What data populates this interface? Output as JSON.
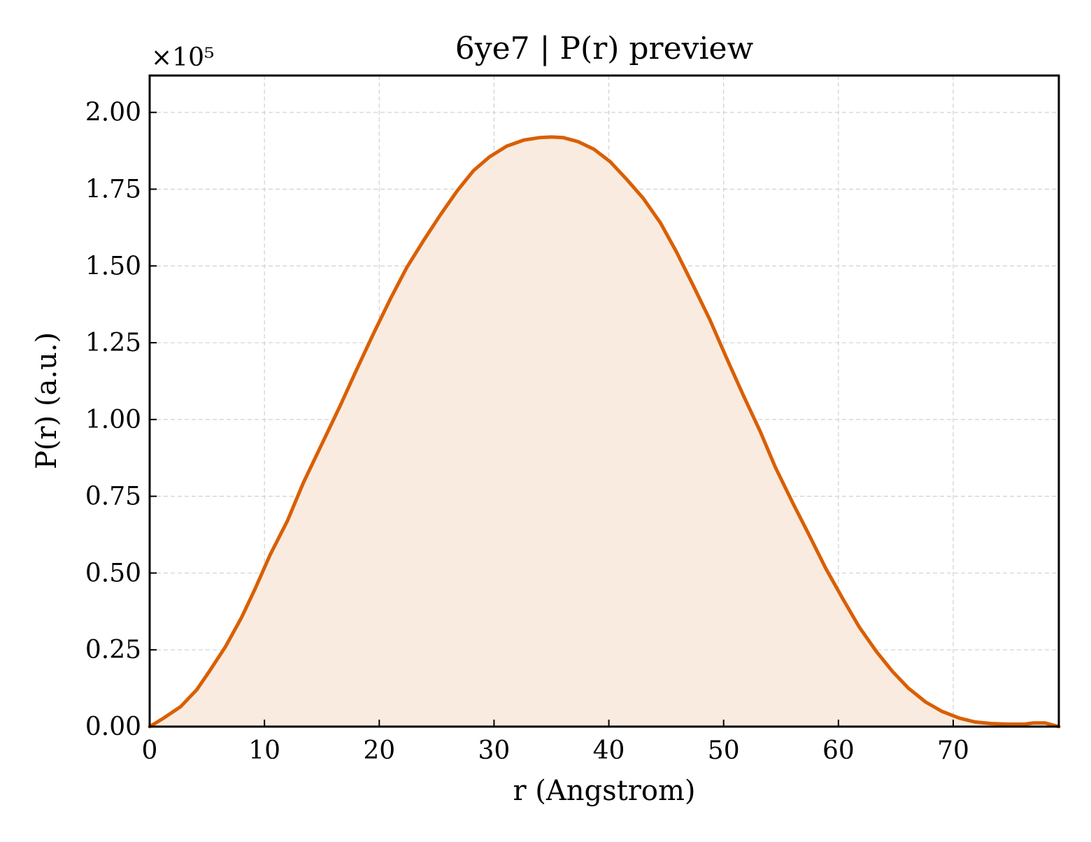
{
  "chart_data": {
    "type": "area",
    "title": "6ye7 | P(r) preview",
    "xlabel": "r (Angstrom)",
    "ylabel": "P(r) (a.u.)",
    "y_offset_label": "×10⁵",
    "y_scale_factor": 100000,
    "xlim": [
      0,
      79.2
    ],
    "ylim": [
      0,
      2.12
    ],
    "grid": true,
    "x_ticks": [
      0,
      10,
      20,
      30,
      40,
      50,
      60,
      70
    ],
    "x_tick_labels": [
      "0",
      "10",
      "20",
      "30",
      "40",
      "50",
      "60",
      "70"
    ],
    "y_ticks": [
      0,
      0.25,
      0.5,
      0.75,
      1.0,
      1.25,
      1.5,
      1.75,
      2.0
    ],
    "y_tick_labels": [
      "0.00",
      "0.25",
      "0.50",
      "0.75",
      "1.00",
      "1.25",
      "1.50",
      "1.75",
      "2.00"
    ],
    "colors": {
      "line": "#d95f02",
      "fill": "#f9ebe0"
    },
    "series": [
      {
        "x": [
          0,
          1.1,
          2.7,
          4.1,
          5.2,
          6.6,
          8.0,
          9.2,
          10.5,
          12.0,
          13.4,
          15.0,
          16.6,
          18.0,
          19.5,
          21.0,
          22.4,
          23.9,
          25.3,
          26.8,
          28.2,
          29.6,
          31.1,
          32.6,
          34.0,
          35.0,
          36.0,
          37.3,
          38.7,
          40.1,
          41.6,
          43.0,
          44.5,
          45.9,
          47.3,
          48.8,
          50.2,
          51.7,
          53.2,
          54.5,
          56.0,
          57.5,
          58.9,
          60.4,
          61.8,
          63.3,
          64.7,
          66.1,
          67.6,
          69.0,
          70.5,
          71.9,
          73.3,
          74.8,
          76.2,
          77.0,
          78.0,
          79.2
        ],
        "y": [
          0.0,
          0.025,
          0.065,
          0.12,
          0.18,
          0.26,
          0.355,
          0.45,
          0.56,
          0.67,
          0.795,
          0.92,
          1.045,
          1.16,
          1.28,
          1.395,
          1.495,
          1.585,
          1.665,
          1.745,
          1.81,
          1.855,
          1.89,
          1.91,
          1.918,
          1.92,
          1.918,
          1.905,
          1.88,
          1.84,
          1.78,
          1.72,
          1.64,
          1.545,
          1.44,
          1.325,
          1.205,
          1.08,
          0.96,
          0.845,
          0.73,
          0.62,
          0.515,
          0.415,
          0.325,
          0.245,
          0.18,
          0.125,
          0.08,
          0.05,
          0.028,
          0.015,
          0.01,
          0.008,
          0.008,
          0.012,
          0.012,
          0.0
        ]
      }
    ]
  }
}
